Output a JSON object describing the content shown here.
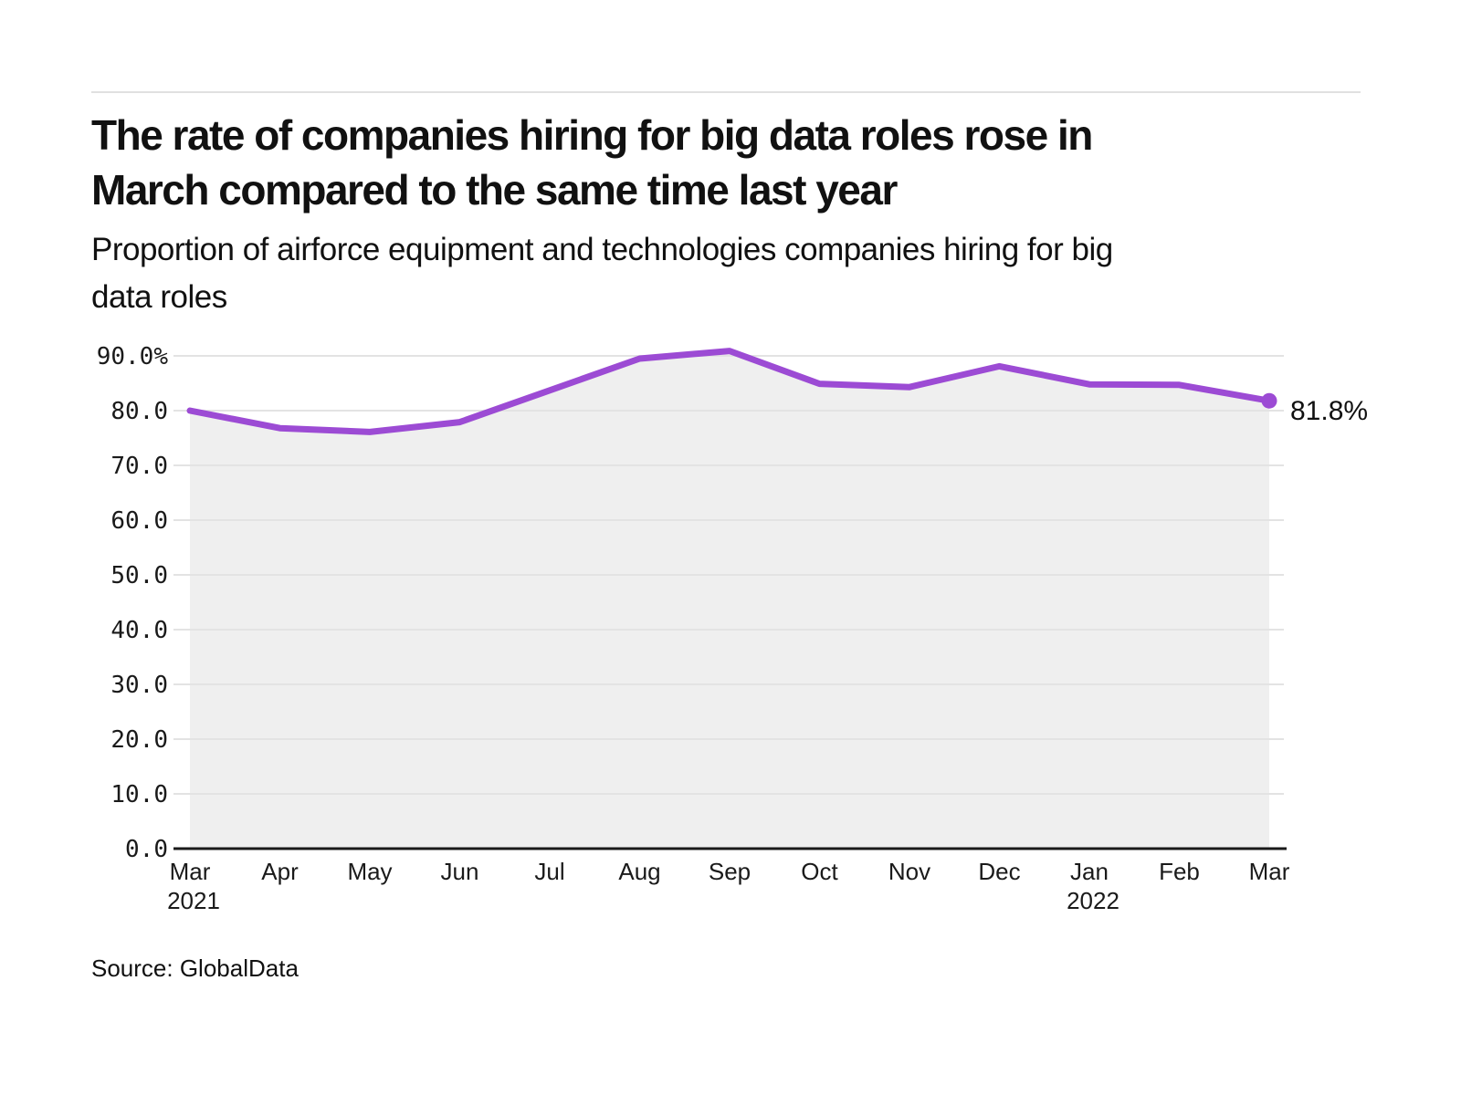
{
  "header": {
    "title_line1": "The rate of companies hiring for big data roles rose in",
    "title_line2": "March compared to the same time last year",
    "subtitle_line1": "Proportion of airforce equipment and technologies companies hiring for big",
    "subtitle_line2": "data roles"
  },
  "source": {
    "text": "Source: GlobalData"
  },
  "chart_data": {
    "type": "area",
    "title": "The rate of companies hiring for big data roles rose in March compared to the same time last year",
    "subtitle": "Proportion of airforce equipment and technologies companies hiring for big data roles",
    "source": "Source: GlobalData",
    "x": [
      "Mar",
      "Apr",
      "May",
      "Jun",
      "Jul",
      "Aug",
      "Sep",
      "Oct",
      "Nov",
      "Dec",
      "Jan",
      "Feb",
      "Mar"
    ],
    "x_year_labels": [
      {
        "label": "2021",
        "index": 0
      },
      {
        "label": "2022",
        "index": 10
      }
    ],
    "values": [
      80.0,
      76.8,
      76.1,
      77.9,
      83.7,
      89.5,
      90.9,
      84.9,
      84.3,
      88.1,
      84.8,
      84.7,
      81.8
    ],
    "end_label": "81.8%",
    "ylim": [
      0,
      90
    ],
    "yticks": [
      0,
      10,
      20,
      30,
      40,
      50,
      60,
      70,
      80,
      90
    ],
    "ytick_labels": [
      "0.0",
      "10.0",
      "20.0",
      "30.0",
      "40.0",
      "50.0",
      "60.0",
      "70.0",
      "80.0",
      "90.0%"
    ],
    "grid": true,
    "legend": "none",
    "line_color": "#9c4bd4",
    "area_color": "#efefef",
    "gridline_color": "#e3e3e3",
    "axis_color": "#1a1a1a",
    "label_color": "#1a1a1a"
  }
}
